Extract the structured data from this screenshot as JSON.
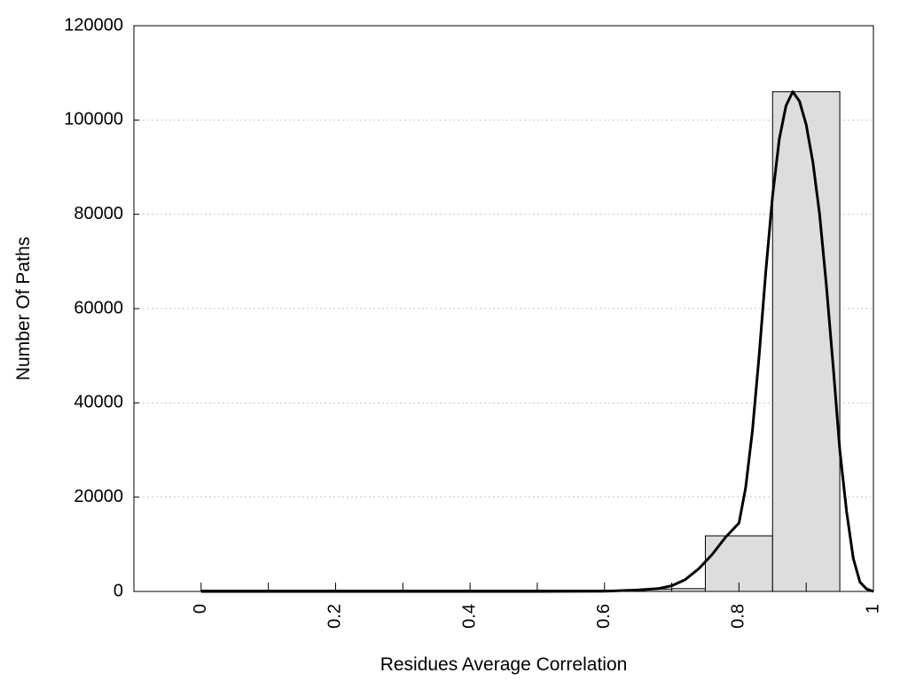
{
  "chart_data": {
    "type": "bar",
    "title": "",
    "xlabel": "Residues Average Correlation",
    "ylabel": "Number Of Paths",
    "xlim": [
      -0.1,
      1.0
    ],
    "ylim": [
      0,
      120000
    ],
    "xticks": [
      {
        "value": 0,
        "label": "0"
      },
      {
        "value": 0.2,
        "label": "0.2"
      },
      {
        "value": 0.4,
        "label": "0.4"
      },
      {
        "value": 0.6,
        "label": "0.6"
      },
      {
        "value": 0.8,
        "label": "0.8"
      },
      {
        "value": 1.0,
        "label": "1"
      }
    ],
    "xminor_ticks": [
      0.1,
      0.3,
      0.5,
      0.7,
      0.9
    ],
    "yticks": [
      {
        "value": 0,
        "label": "0"
      },
      {
        "value": 20000,
        "label": "20000"
      },
      {
        "value": 40000,
        "label": "40000"
      },
      {
        "value": 60000,
        "label": "60000"
      },
      {
        "value": 80000,
        "label": "80000"
      },
      {
        "value": 100000,
        "label": "100000"
      },
      {
        "value": 120000,
        "label": "120000"
      }
    ],
    "grid": {
      "y": true,
      "x": false,
      "style": "dotted"
    },
    "bar_color": "#dddddd",
    "curve_color": "#000000",
    "bars": [
      {
        "x0": 0.0,
        "x1": 0.05,
        "value": 0
      },
      {
        "x0": 0.05,
        "x1": 0.1,
        "value": 0
      },
      {
        "x0": 0.1,
        "x1": 0.15,
        "value": 0
      },
      {
        "x0": 0.15,
        "x1": 0.2,
        "value": 0
      },
      {
        "x0": 0.2,
        "x1": 0.25,
        "value": 0
      },
      {
        "x0": 0.25,
        "x1": 0.3,
        "value": 0
      },
      {
        "x0": 0.3,
        "x1": 0.35,
        "value": 0
      },
      {
        "x0": 0.35,
        "x1": 0.4,
        "value": 0
      },
      {
        "x0": 0.4,
        "x1": 0.45,
        "value": 0
      },
      {
        "x0": 0.45,
        "x1": 0.5,
        "value": 0
      },
      {
        "x0": 0.5,
        "x1": 0.55,
        "value": 0
      },
      {
        "x0": 0.55,
        "x1": 0.6,
        "value": 0
      },
      {
        "x0": 0.6,
        "x1": 0.65,
        "value": 30
      },
      {
        "x0": 0.65,
        "x1": 0.7,
        "value": 500
      },
      {
        "x0": 0.7,
        "x1": 0.75,
        "value": 600
      },
      {
        "x0": 0.75,
        "x1": 0.85,
        "value": 11800
      },
      {
        "x0": 0.85,
        "x1": 0.95,
        "value": 106000
      }
    ],
    "curve": {
      "x": [
        0.0,
        0.1,
        0.2,
        0.3,
        0.4,
        0.5,
        0.6,
        0.65,
        0.68,
        0.7,
        0.72,
        0.74,
        0.76,
        0.78,
        0.8,
        0.81,
        0.82,
        0.83,
        0.84,
        0.85,
        0.86,
        0.87,
        0.88,
        0.89,
        0.9,
        0.91,
        0.92,
        0.93,
        0.94,
        0.95,
        0.96,
        0.97,
        0.98,
        0.99,
        1.0
      ],
      "y": [
        0,
        0,
        0,
        0,
        0,
        0,
        50,
        300,
        600,
        1200,
        2500,
        4800,
        7800,
        11500,
        14500,
        22000,
        34000,
        50000,
        68000,
        84000,
        96000,
        103000,
        106000,
        104000,
        99000,
        91000,
        80000,
        65000,
        48000,
        30000,
        17000,
        7000,
        2000,
        500,
        0
      ]
    }
  }
}
